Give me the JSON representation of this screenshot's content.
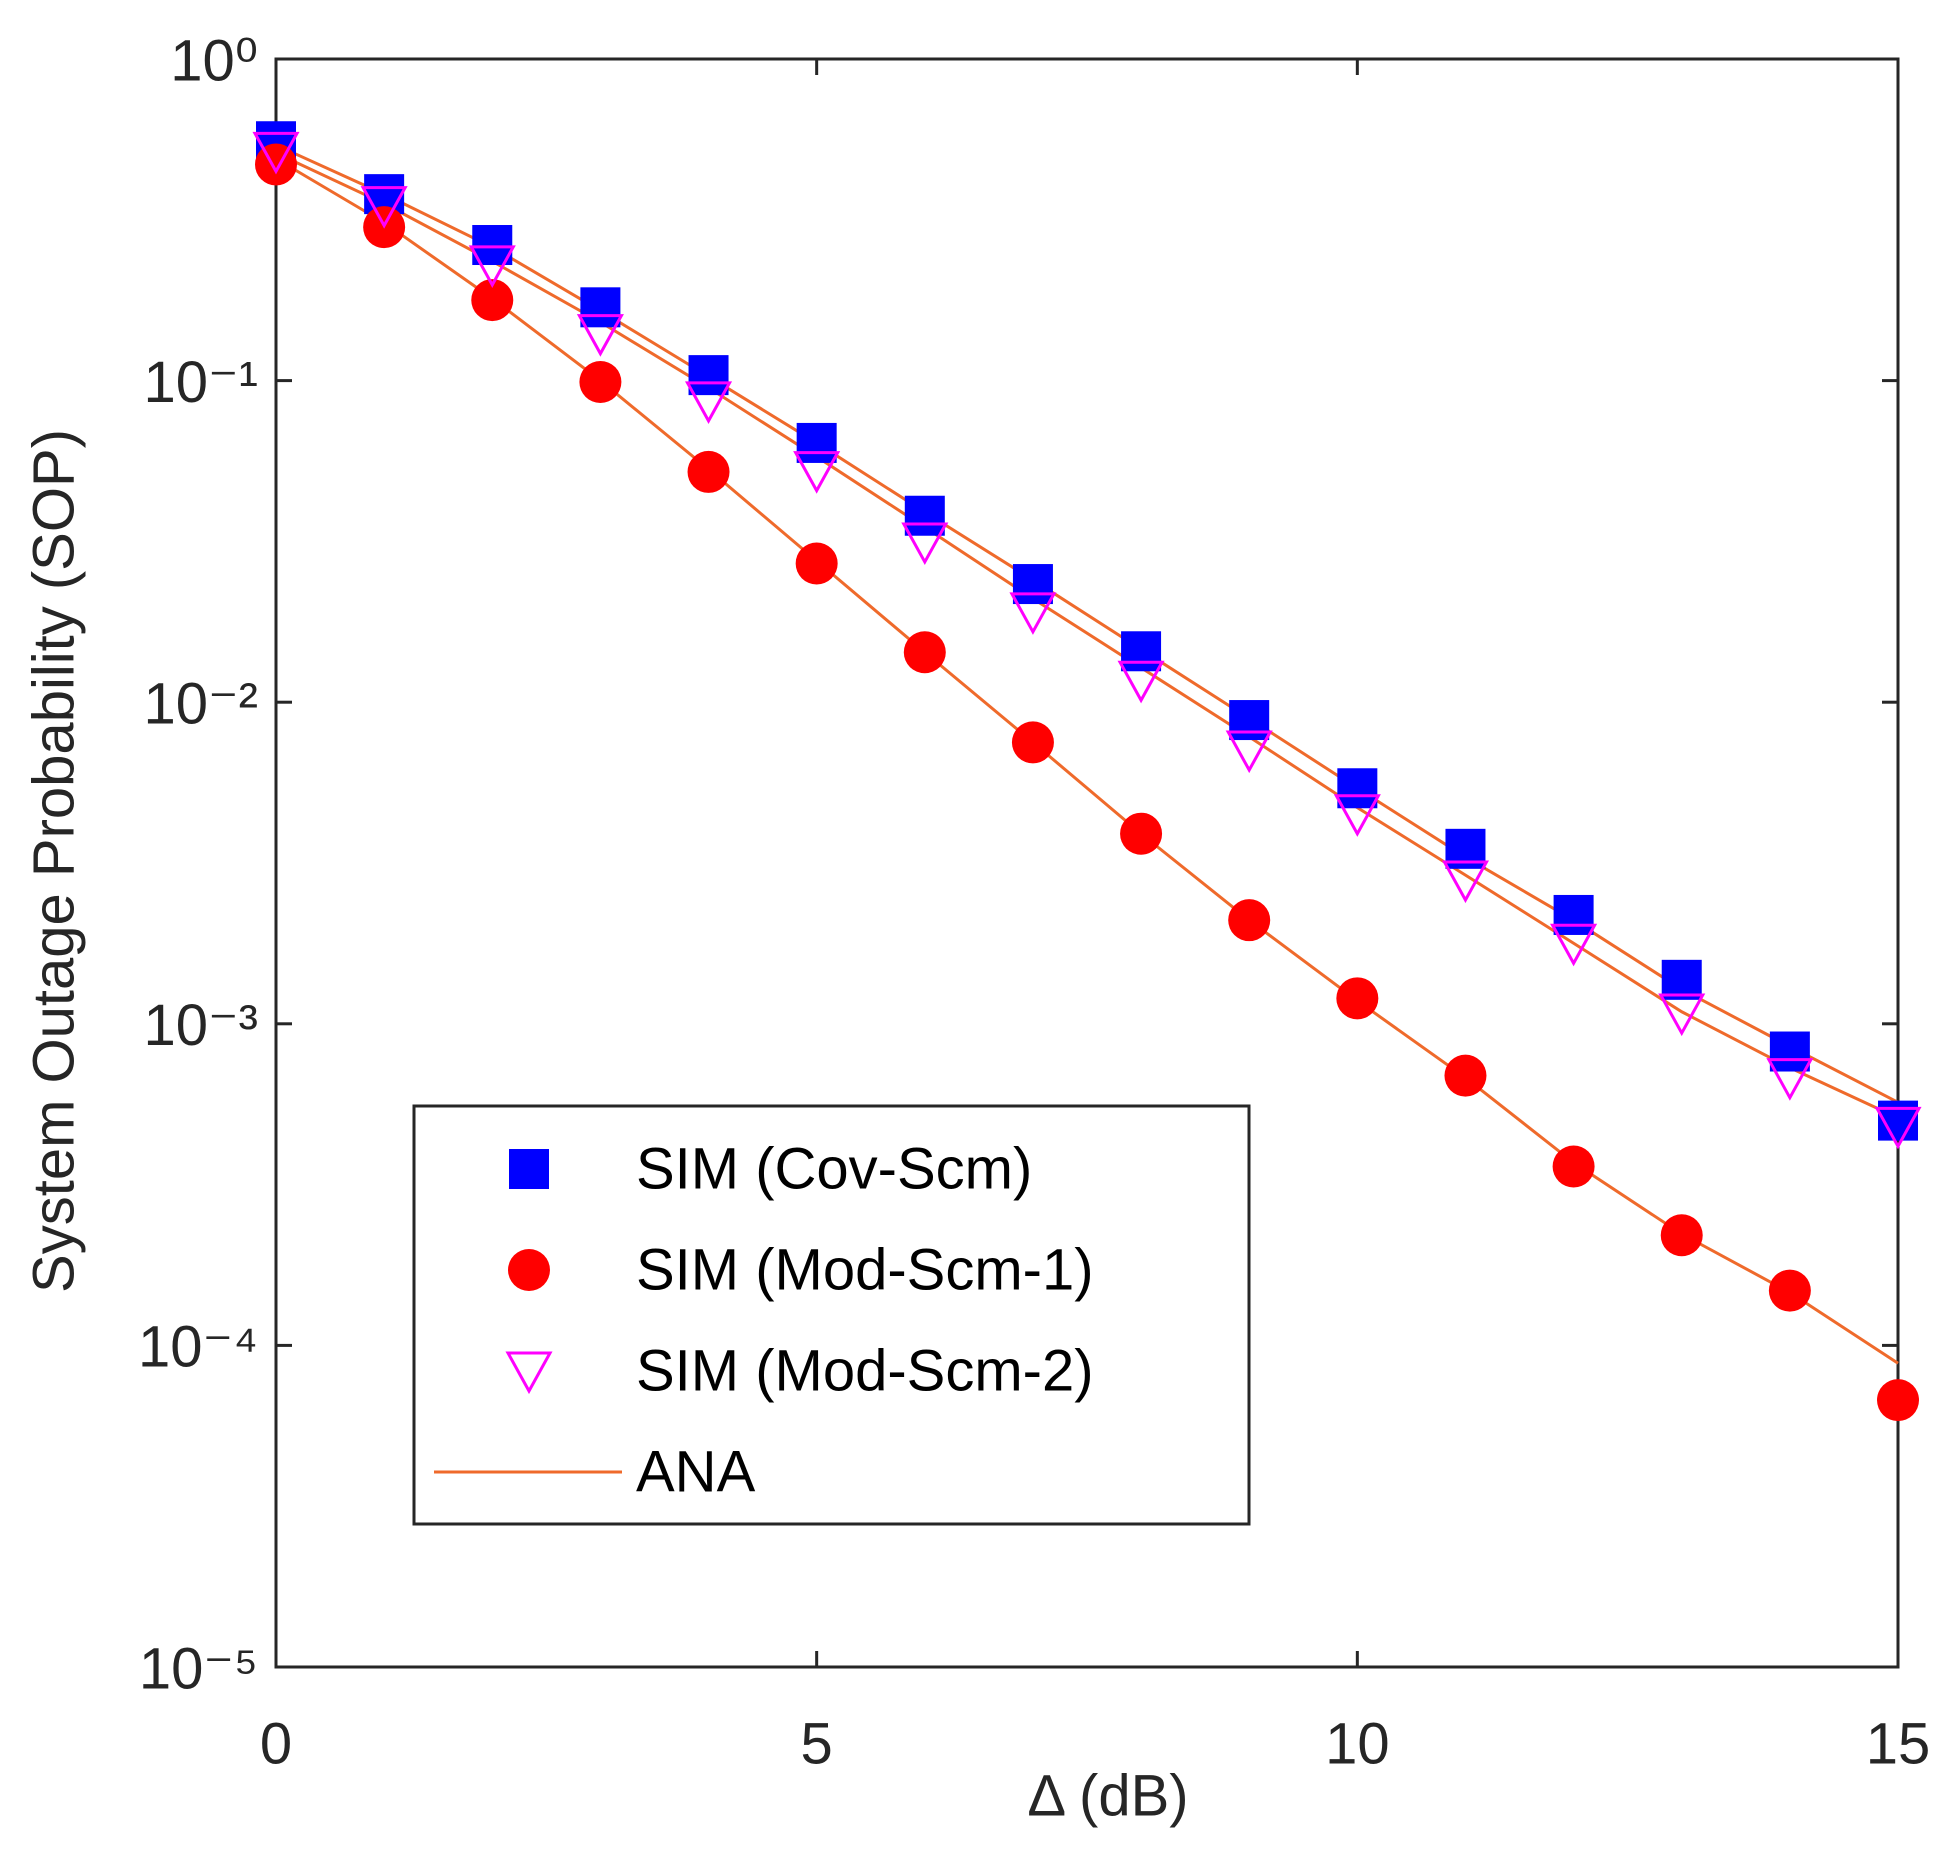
{
  "chart_data": {
    "type": "scatter",
    "xlabel": "Δ (dB)",
    "ylabel": "System Outage Probability (SOP)",
    "x": [
      0,
      1,
      2,
      3,
      4,
      5,
      6,
      7,
      8,
      9,
      10,
      11,
      12,
      13,
      14,
      15
    ],
    "xlim": [
      0,
      15
    ],
    "xticks": [
      0,
      5,
      10,
      15
    ],
    "ylim": [
      1e-05,
      1
    ],
    "yscale": "log",
    "yticks": [
      {
        "value": 1,
        "label": "10⁰"
      },
      {
        "value": 0.1,
        "label": "10⁻¹"
      },
      {
        "value": 0.01,
        "label": "10⁻²"
      },
      {
        "value": 0.001,
        "label": "10⁻³"
      },
      {
        "value": 0.0001,
        "label": "10⁻⁴"
      },
      {
        "value": 1e-05,
        "label": "10⁻⁵"
      }
    ],
    "legend": "lower left",
    "series": [
      {
        "name": "SIM (Cov-Scm)",
        "color": "#0000ff",
        "marker": "square",
        "values": [
          0.555,
          0.38,
          0.264,
          0.169,
          0.104,
          0.064,
          0.038,
          0.0233,
          0.0144,
          0.0088,
          0.0054,
          0.0035,
          0.00218,
          0.00137,
          0.00082,
          0.0005
        ]
      },
      {
        "name": "SIM (Mod-Scm-1)",
        "color": "#ff0000",
        "marker": "circle",
        "values": [
          0.47,
          0.3,
          0.178,
          0.099,
          0.052,
          0.027,
          0.0143,
          0.0075,
          0.0039,
          0.0021,
          0.0012,
          0.00069,
          0.00036,
          0.00022,
          0.000148,
          6.76e-05
        ]
      },
      {
        "name": "SIM (Mod-Scm-2)",
        "color": "#ff00ff",
        "marker": "triangle-down",
        "values": [
          0.516,
          0.35,
          0.229,
          0.14,
          0.0865,
          0.0525,
          0.0315,
          0.0191,
          0.0117,
          0.0071,
          0.0045,
          0.0028,
          0.00178,
          0.00108,
          0.00068,
          0.00048
        ]
      }
    ],
    "ana": {
      "name": "ANA",
      "color": "#ef6a2b",
      "lines": [
        [
          0.54,
          0.38,
          0.26,
          0.165,
          0.103,
          0.064,
          0.039,
          0.024,
          0.0146,
          0.0089,
          0.0054,
          0.0033,
          0.0021,
          0.00128,
          0.00085,
          0.00057
        ],
        [
          0.51,
          0.355,
          0.235,
          0.152,
          0.095,
          0.058,
          0.035,
          0.021,
          0.0128,
          0.0078,
          0.0047,
          0.0029,
          0.00178,
          0.00109,
          0.00073,
          0.00051
        ],
        [
          0.49,
          0.31,
          0.18,
          0.1,
          0.053,
          0.0275,
          0.0143,
          0.0075,
          0.0039,
          0.0021,
          0.00118,
          0.00068,
          0.00037,
          0.000222,
          0.000146,
          8.8e-05
        ]
      ]
    }
  }
}
